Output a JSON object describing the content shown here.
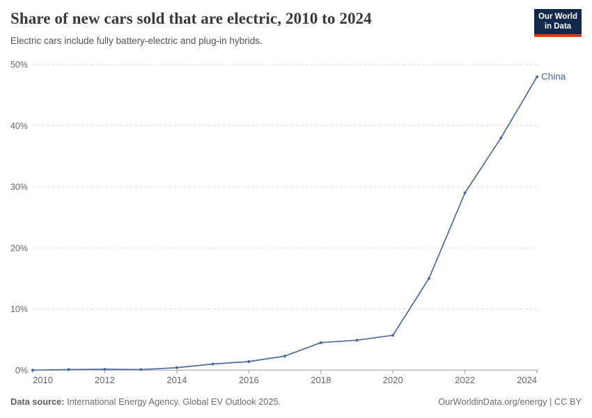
{
  "header": {
    "title": "Share of new cars sold that are electric, 2010 to 2024",
    "subtitle": "Electric cars include fully battery-electric and plug-in hybrids.",
    "logo": {
      "line1": "Our World",
      "line2": "in Data"
    }
  },
  "chart_data": {
    "type": "line",
    "title": "Share of new cars sold that are electric, 2010 to 2024",
    "subtitle": "Electric cars include fully battery-electric and plug-in hybrids.",
    "xlabel": "",
    "ylabel": "",
    "xlim": [
      2010,
      2024
    ],
    "ylim": [
      0,
      50
    ],
    "x_ticks": [
      2010,
      2012,
      2014,
      2016,
      2018,
      2020,
      2022,
      2024
    ],
    "y_ticks": [
      0,
      10,
      20,
      30,
      40,
      50
    ],
    "y_tick_suffix": "%",
    "grid": "horizontal-dashed",
    "legend_position": "end-of-line-label",
    "series": [
      {
        "name": "China",
        "x": [
          2010,
          2011,
          2012,
          2013,
          2014,
          2015,
          2016,
          2017,
          2018,
          2019,
          2020,
          2021,
          2022,
          2023,
          2024
        ],
        "values": [
          0.0,
          0.1,
          0.15,
          0.1,
          0.4,
          1.0,
          1.4,
          2.3,
          4.5,
          4.9,
          5.7,
          15,
          29,
          38,
          48
        ]
      }
    ]
  },
  "footer": {
    "source_label": "Data source:",
    "source_text": " International Energy Agency. Global EV Outlook 2025.",
    "right_text": "OurWorldinData.org/energy | CC BY"
  },
  "colors": {
    "series_line": "#4c6a9e",
    "gridline": "#dadada",
    "axis_line": "#999999",
    "tick_text": "#666666",
    "title_text": "#383838",
    "subtitle_text": "#555555",
    "logo_background": "#12294d",
    "logo_accent_red": "#cf3b31"
  }
}
